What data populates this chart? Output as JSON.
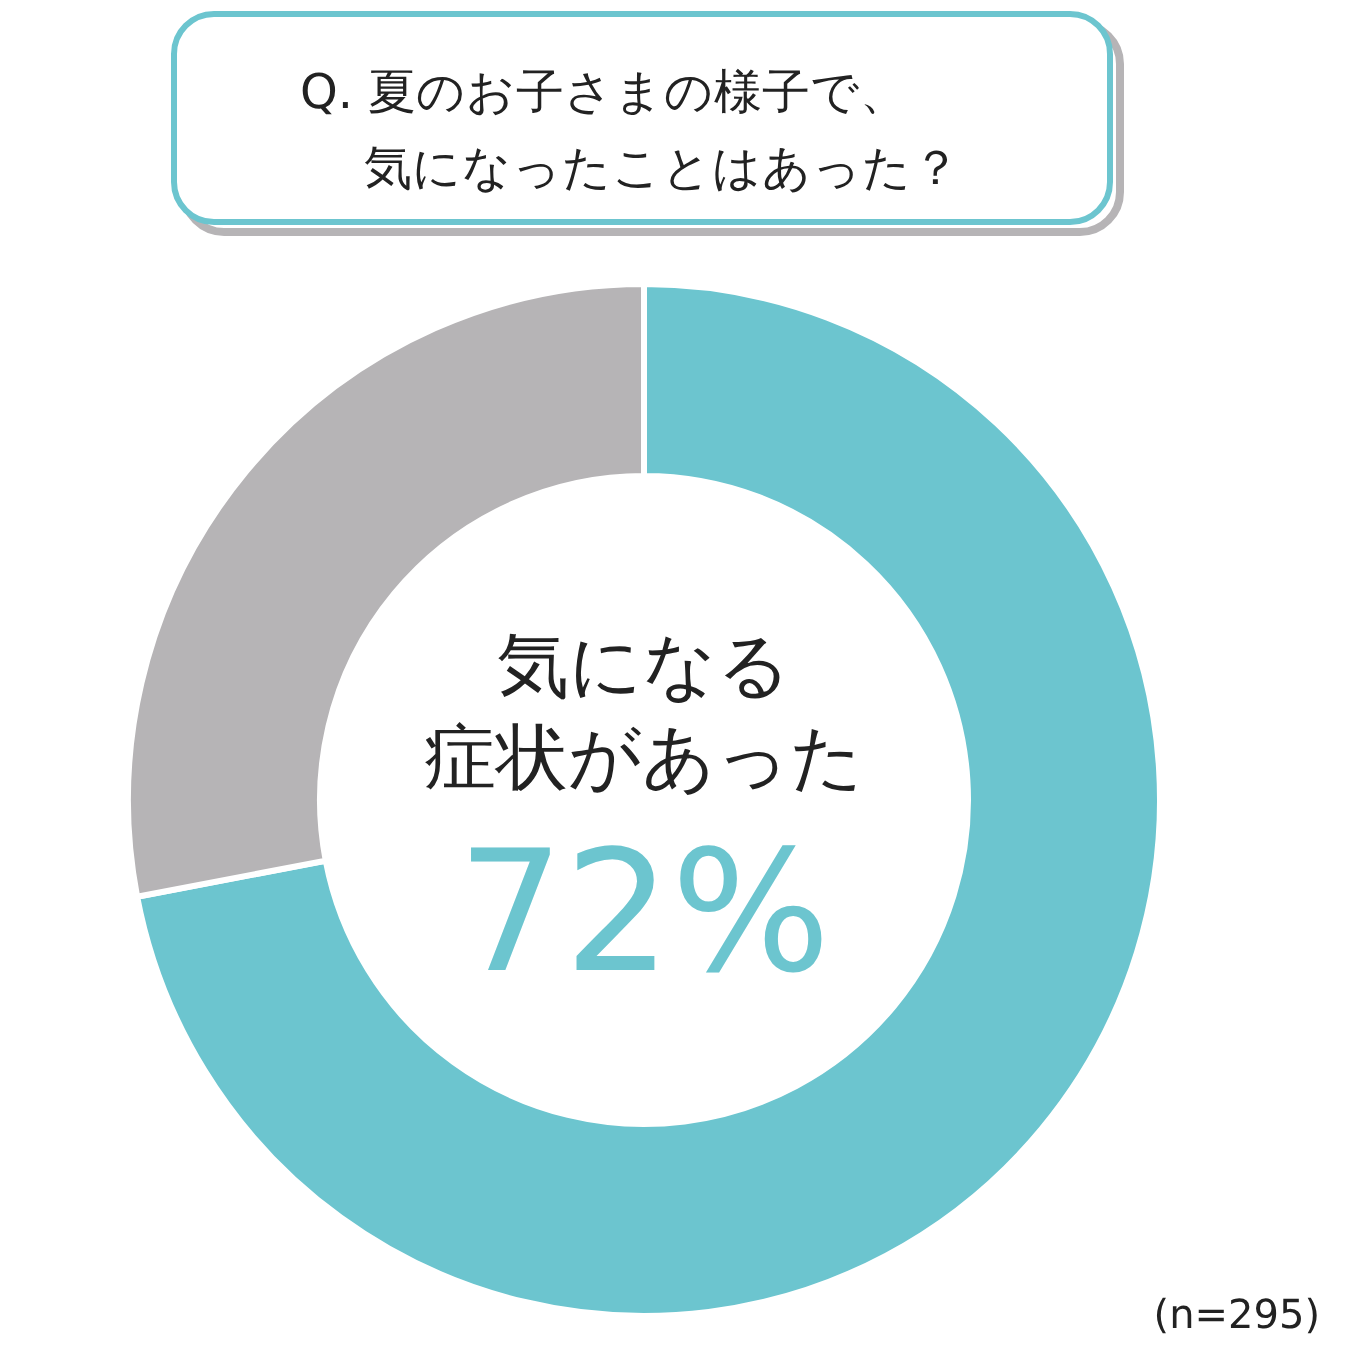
{
  "chart_data": {
    "type": "donut",
    "title": "Q. 夏のお子さまの様子で、気になったことはあった？",
    "categories": [
      "気になる症状があった",
      null
    ],
    "values": [
      72,
      28
    ],
    "colors": [
      "#6cc5cf",
      "#b6b4b6"
    ],
    "value_labels": [
      "72%",
      null
    ],
    "annotations": [
      "(n=295)"
    ],
    "legend": false
  }
}
